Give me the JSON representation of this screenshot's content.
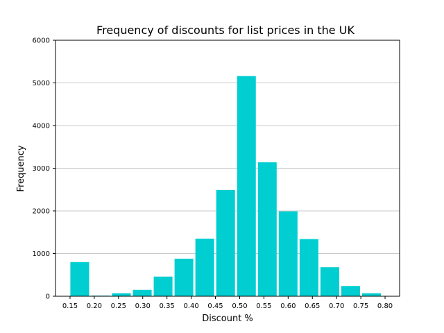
{
  "chart_data": {
    "type": "bar",
    "title": "Frequency of discounts for list prices in the UK",
    "xlabel": "Discount %",
    "ylabel": "Frequency",
    "ylim": [
      0,
      6000
    ],
    "xlim": [
      0.12,
      0.83
    ],
    "yticks": [
      0,
      1000,
      2000,
      3000,
      4000,
      5000,
      6000
    ],
    "xticks": [
      "0.15",
      "0.20",
      "0.25",
      "0.30",
      "0.35",
      "0.40",
      "0.45",
      "0.50",
      "0.55",
      "0.60",
      "0.65",
      "0.70",
      "0.75",
      "0.80"
    ],
    "bin_width": 0.043,
    "bar_color": "#00ced1",
    "grid": "y",
    "bins": [
      {
        "x": 0.17,
        "value": 800
      },
      {
        "x": 0.213,
        "value": 15
      },
      {
        "x": 0.256,
        "value": 70
      },
      {
        "x": 0.299,
        "value": 150
      },
      {
        "x": 0.342,
        "value": 460
      },
      {
        "x": 0.385,
        "value": 880
      },
      {
        "x": 0.428,
        "value": 1350
      },
      {
        "x": 0.471,
        "value": 2490
      },
      {
        "x": 0.514,
        "value": 5160
      },
      {
        "x": 0.557,
        "value": 3140
      },
      {
        "x": 0.6,
        "value": 1990
      },
      {
        "x": 0.643,
        "value": 1340
      },
      {
        "x": 0.686,
        "value": 680
      },
      {
        "x": 0.729,
        "value": 240
      },
      {
        "x": 0.772,
        "value": 70
      }
    ]
  }
}
